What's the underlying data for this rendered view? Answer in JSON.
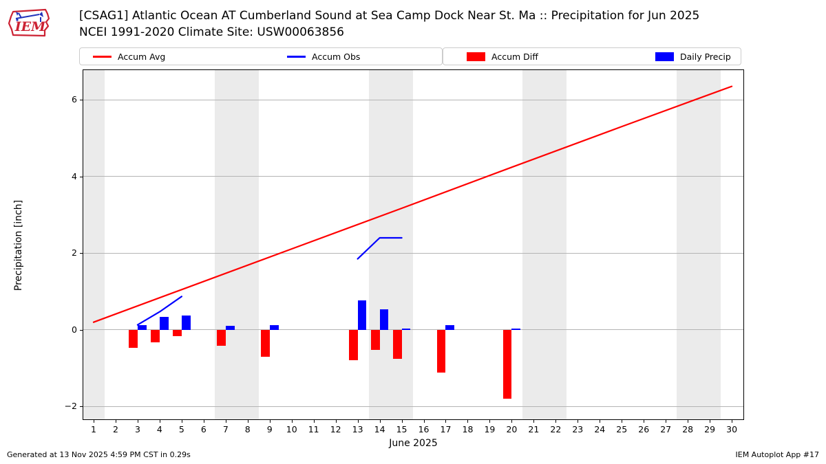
{
  "header": {
    "title_line1": "[CSAG1] Atlantic Ocean  AT Cumberland Sound at Sea Camp Dock Near St. Ma :: Precipitation for Jun 2025",
    "title_line2": "NCEI 1991-2020 Climate Site: USW00063856",
    "logo_text": "IEM"
  },
  "legend": {
    "entries": [
      {
        "label": "Accum Avg",
        "swatch": "line",
        "color": "#ff0000"
      },
      {
        "label": "Accum Obs",
        "swatch": "line",
        "color": "#0000ff"
      },
      {
        "label": "Accum Diff",
        "swatch": "patch",
        "color": "#ff0000"
      },
      {
        "label": "Daily Precip",
        "swatch": "patch",
        "color": "#0000ff"
      }
    ]
  },
  "chart_data": {
    "type": "mixed-line-bar",
    "title": "",
    "xlabel": "June 2025",
    "ylabel": "Precipitation [inch]",
    "xlim": [
      0.5,
      30.56
    ],
    "ylim": [
      -2.35,
      6.79
    ],
    "grid": "horizontal",
    "x_ticks": [
      1,
      2,
      3,
      4,
      5,
      6,
      7,
      8,
      9,
      10,
      11,
      12,
      13,
      14,
      15,
      16,
      17,
      18,
      19,
      20,
      21,
      22,
      23,
      24,
      25,
      26,
      27,
      28,
      29,
      30
    ],
    "y_ticks": [
      {
        "label": "6",
        "value": 6
      },
      {
        "label": "4",
        "value": 4
      },
      {
        "label": "2",
        "value": 2
      },
      {
        "label": "0",
        "value": 0
      },
      {
        "label": "−2",
        "value": -2
      }
    ],
    "weekend_bands": [
      [
        0.5,
        1.5
      ],
      [
        6.5,
        8.5
      ],
      [
        13.5,
        15.5
      ],
      [
        20.5,
        22.5
      ],
      [
        27.5,
        29.5
      ]
    ],
    "band_color": "#ebebeb",
    "grid_color": "#b4b4b4",
    "series": [
      {
        "name": "Accum Avg",
        "type": "line",
        "color": "#ff0000",
        "segments": [
          [
            [
              1,
              0.2
            ],
            [
              5,
              1.05
            ],
            [
              10,
              2.11
            ],
            [
              15,
              3.17
            ],
            [
              20,
              4.24
            ],
            [
              25,
              5.3
            ],
            [
              30,
              6.35
            ]
          ]
        ]
      },
      {
        "name": "Accum Obs",
        "type": "line",
        "color": "#0000ff",
        "segments": [
          [
            [
              3,
              0.13
            ],
            [
              4,
              0.47
            ],
            [
              5,
              0.87
            ]
          ],
          [
            [
              13,
              1.85
            ],
            [
              14,
              2.4
            ],
            [
              15,
              2.4
            ]
          ]
        ]
      },
      {
        "name": "Accum Diff",
        "type": "bar",
        "color": "#ff0000",
        "align": "left",
        "bar_width_days": 0.4,
        "days": [
          3,
          4,
          5,
          7,
          9,
          13,
          14,
          15,
          17,
          20
        ],
        "values": [
          -0.46,
          -0.33,
          -0.16,
          -0.42,
          -0.7,
          -0.8,
          -0.52,
          -0.76,
          -1.12,
          -1.8
        ]
      },
      {
        "name": "Daily Precip",
        "type": "bar",
        "color": "#0000ff",
        "align": "right",
        "bar_width_days": 0.4,
        "days": [
          3,
          4,
          5,
          7,
          9,
          13,
          14,
          15,
          17,
          20
        ],
        "values": [
          0.13,
          0.34,
          0.38,
          0.11,
          0.12,
          0.77,
          0.53,
          0.01,
          0.12,
          0.01
        ]
      }
    ]
  },
  "footer": {
    "left": "Generated at 13 Nov 2025 4:59 PM CST in 0.29s",
    "right": "IEM Autoplot App #17"
  }
}
